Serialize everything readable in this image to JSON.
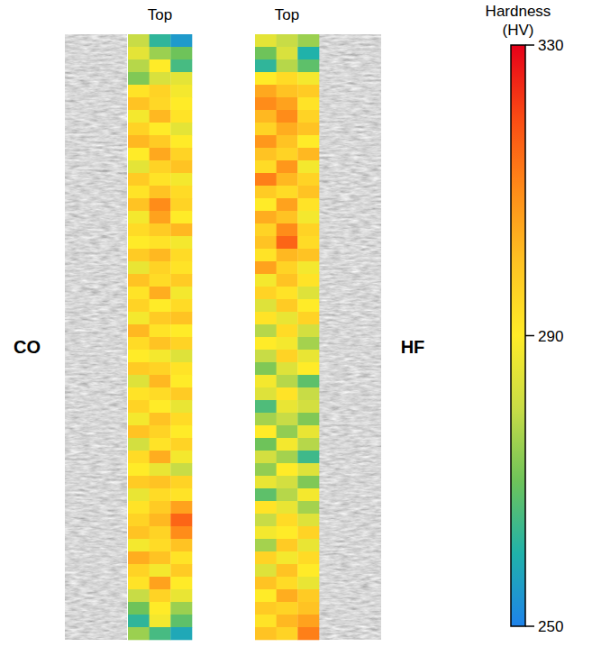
{
  "chart_data": {
    "type": "heatmap",
    "panels": [
      {
        "label": "CO",
        "title": "Top",
        "cells": [
          [
            280,
            262,
            255
          ],
          [
            285,
            275,
            270
          ],
          [
            278,
            290,
            265
          ],
          [
            272,
            283,
            285
          ],
          [
            292,
            296,
            288
          ],
          [
            300,
            295,
            290
          ],
          [
            288,
            302,
            292
          ],
          [
            296,
            290,
            285
          ],
          [
            302,
            298,
            290
          ],
          [
            290,
            305,
            296
          ],
          [
            285,
            296,
            300
          ],
          [
            298,
            292,
            288
          ],
          [
            292,
            300,
            294
          ],
          [
            300,
            310,
            296
          ],
          [
            288,
            306,
            290
          ],
          [
            294,
            298,
            302
          ],
          [
            290,
            292,
            288
          ],
          [
            298,
            302,
            294
          ],
          [
            286,
            296,
            292
          ],
          [
            300,
            294,
            298
          ],
          [
            292,
            304,
            288
          ],
          [
            296,
            290,
            294
          ],
          [
            288,
            298,
            300
          ],
          [
            302,
            292,
            290
          ],
          [
            294,
            300,
            296
          ],
          [
            290,
            288,
            284
          ],
          [
            298,
            296,
            292
          ],
          [
            284,
            302,
            290
          ],
          [
            292,
            294,
            298
          ],
          [
            296,
            290,
            286
          ],
          [
            288,
            300,
            294
          ],
          [
            300,
            296,
            290
          ],
          [
            282,
            292,
            296
          ],
          [
            294,
            304,
            288
          ],
          [
            290,
            286,
            280
          ],
          [
            298,
            300,
            296
          ],
          [
            286,
            294,
            292
          ],
          [
            292,
            298,
            306
          ],
          [
            296,
            302,
            316
          ],
          [
            300,
            296,
            310
          ],
          [
            288,
            294,
            300
          ],
          [
            304,
            300,
            292
          ],
          [
            296,
            288,
            298
          ],
          [
            292,
            306,
            290
          ],
          [
            280,
            296,
            286
          ],
          [
            270,
            290,
            275
          ],
          [
            262,
            288,
            268
          ],
          [
            275,
            265,
            258
          ]
        ]
      },
      {
        "label": "HF",
        "title": "Top",
        "cells": [
          [
            285,
            280,
            275
          ],
          [
            270,
            283,
            260
          ],
          [
            262,
            278,
            268
          ],
          [
            290,
            294,
            288
          ],
          [
            305,
            300,
            298
          ],
          [
            310,
            306,
            292
          ],
          [
            302,
            310,
            296
          ],
          [
            296,
            304,
            300
          ],
          [
            308,
            300,
            290
          ],
          [
            300,
            296,
            302
          ],
          [
            294,
            308,
            288
          ],
          [
            312,
            302,
            296
          ],
          [
            298,
            294,
            300
          ],
          [
            290,
            306,
            292
          ],
          [
            304,
            300,
            288
          ],
          [
            296,
            310,
            296
          ],
          [
            300,
            316,
            294
          ],
          [
            292,
            302,
            300
          ],
          [
            306,
            296,
            288
          ],
          [
            288,
            300,
            292
          ],
          [
            296,
            292,
            284
          ],
          [
            284,
            298,
            290
          ],
          [
            292,
            286,
            296
          ],
          [
            278,
            294,
            282
          ],
          [
            290,
            288,
            276
          ],
          [
            280,
            296,
            286
          ],
          [
            272,
            284,
            290
          ],
          [
            288,
            278,
            268
          ],
          [
            284,
            292,
            280
          ],
          [
            266,
            286,
            282
          ],
          [
            276,
            280,
            272
          ],
          [
            290,
            274,
            286
          ],
          [
            270,
            288,
            278
          ],
          [
            282,
            276,
            264
          ],
          [
            274,
            290,
            284
          ],
          [
            286,
            282,
            272
          ],
          [
            268,
            278,
            288
          ],
          [
            292,
            286,
            276
          ],
          [
            280,
            294,
            284
          ],
          [
            288,
            290,
            296
          ],
          [
            276,
            298,
            286
          ],
          [
            296,
            288,
            294
          ],
          [
            284,
            300,
            290
          ],
          [
            300,
            294,
            286
          ],
          [
            290,
            304,
            298
          ],
          [
            298,
            296,
            300
          ],
          [
            292,
            302,
            306
          ],
          [
            300,
            296,
            312
          ]
        ]
      }
    ],
    "colorbar": {
      "title": "Hardness (HV)",
      "range": [
        250,
        330
      ],
      "ticks": [
        250,
        290,
        330
      ]
    }
  }
}
